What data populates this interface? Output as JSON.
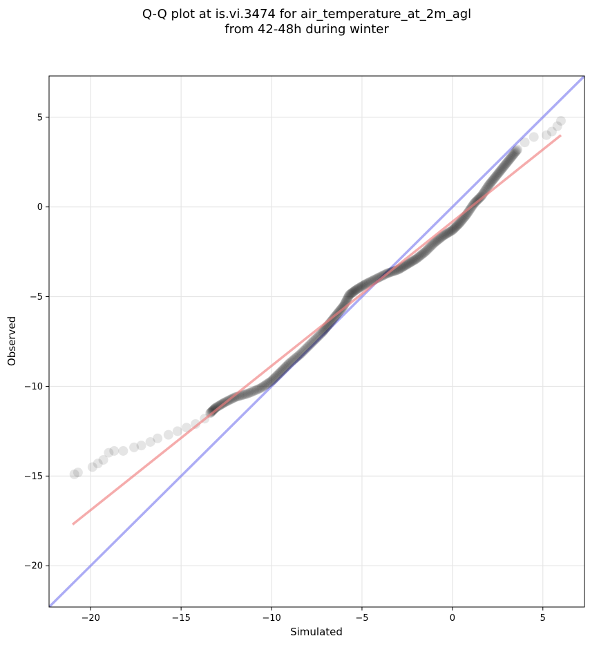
{
  "chart_data": {
    "type": "scatter",
    "title_lines": [
      "Q-Q plot at is.vi.3474 for air_temperature_at_2m_agl",
      "from 42-48h during winter"
    ],
    "xlabel": "Simulated",
    "ylabel": "Observed",
    "xlim": [
      -22.3,
      7.3
    ],
    "ylim": [
      -22.3,
      7.3
    ],
    "xticks": [
      -20,
      -15,
      -10,
      -5,
      0,
      5
    ],
    "yticks": [
      -20,
      -15,
      -10,
      -5,
      0,
      5
    ],
    "tick_labels": [
      "−20",
      "−15",
      "−10",
      "−5",
      "0",
      "5"
    ],
    "grid": true,
    "colors": {
      "points": "#000000",
      "fit_line": "#f08080",
      "identity_line": "#8080f0"
    },
    "quantile_points_sample": [
      [
        -20.9,
        -14.9
      ],
      [
        -20.7,
        -14.8
      ],
      [
        -19.9,
        -14.5
      ],
      [
        -19.6,
        -14.3
      ],
      [
        -19.3,
        -14.1
      ],
      [
        -19.0,
        -13.7
      ],
      [
        -18.7,
        -13.6
      ],
      [
        -18.2,
        -13.6
      ],
      [
        -17.6,
        -13.4
      ],
      [
        -17.2,
        -13.3
      ],
      [
        -16.7,
        -13.1
      ],
      [
        -16.3,
        -12.9
      ],
      [
        -15.7,
        -12.7
      ],
      [
        -15.2,
        -12.5
      ],
      [
        -14.7,
        -12.3
      ],
      [
        -14.2,
        -12.1
      ],
      [
        -13.7,
        -11.8
      ],
      [
        -13.4,
        -11.5
      ],
      [
        -13.1,
        -11.2
      ],
      [
        -12.6,
        -10.9
      ],
      [
        -12.0,
        -10.6
      ],
      [
        -11.3,
        -10.4
      ],
      [
        -10.6,
        -10.1
      ],
      [
        -10.0,
        -9.7
      ],
      [
        -9.5,
        -9.2
      ],
      [
        -9.0,
        -8.7
      ],
      [
        -8.4,
        -8.2
      ],
      [
        -7.8,
        -7.6
      ],
      [
        -7.2,
        -7.0
      ],
      [
        -6.8,
        -6.5
      ],
      [
        -6.4,
        -6.0
      ],
      [
        -6.0,
        -5.5
      ],
      [
        -5.7,
        -4.9
      ],
      [
        -5.3,
        -4.6
      ],
      [
        -4.8,
        -4.3
      ],
      [
        -4.2,
        -4.0
      ],
      [
        -3.6,
        -3.7
      ],
      [
        -3.0,
        -3.5
      ],
      [
        -2.5,
        -3.2
      ],
      [
        -2.0,
        -2.9
      ],
      [
        -1.5,
        -2.5
      ],
      [
        -1.0,
        -2.0
      ],
      [
        -0.5,
        -1.6
      ],
      [
        0.0,
        -1.3
      ],
      [
        0.4,
        -0.9
      ],
      [
        0.8,
        -0.4
      ],
      [
        1.2,
        0.2
      ],
      [
        1.6,
        0.6
      ],
      [
        2.0,
        1.2
      ],
      [
        2.4,
        1.7
      ],
      [
        2.8,
        2.2
      ],
      [
        3.2,
        2.7
      ],
      [
        3.6,
        3.2
      ],
      [
        4.0,
        3.6
      ],
      [
        4.5,
        3.9
      ],
      [
        5.2,
        4.0
      ],
      [
        5.5,
        4.2
      ],
      [
        5.8,
        4.5
      ],
      [
        6.0,
        4.8
      ]
    ],
    "series": [
      {
        "values": [
          [
            -21.0,
            -17.7
          ],
          [
            6.0,
            4.0
          ]
        ]
      },
      {
        "values": [
          [
            -22.3,
            -22.3
          ],
          [
            7.3,
            7.3
          ]
        ]
      }
    ]
  }
}
